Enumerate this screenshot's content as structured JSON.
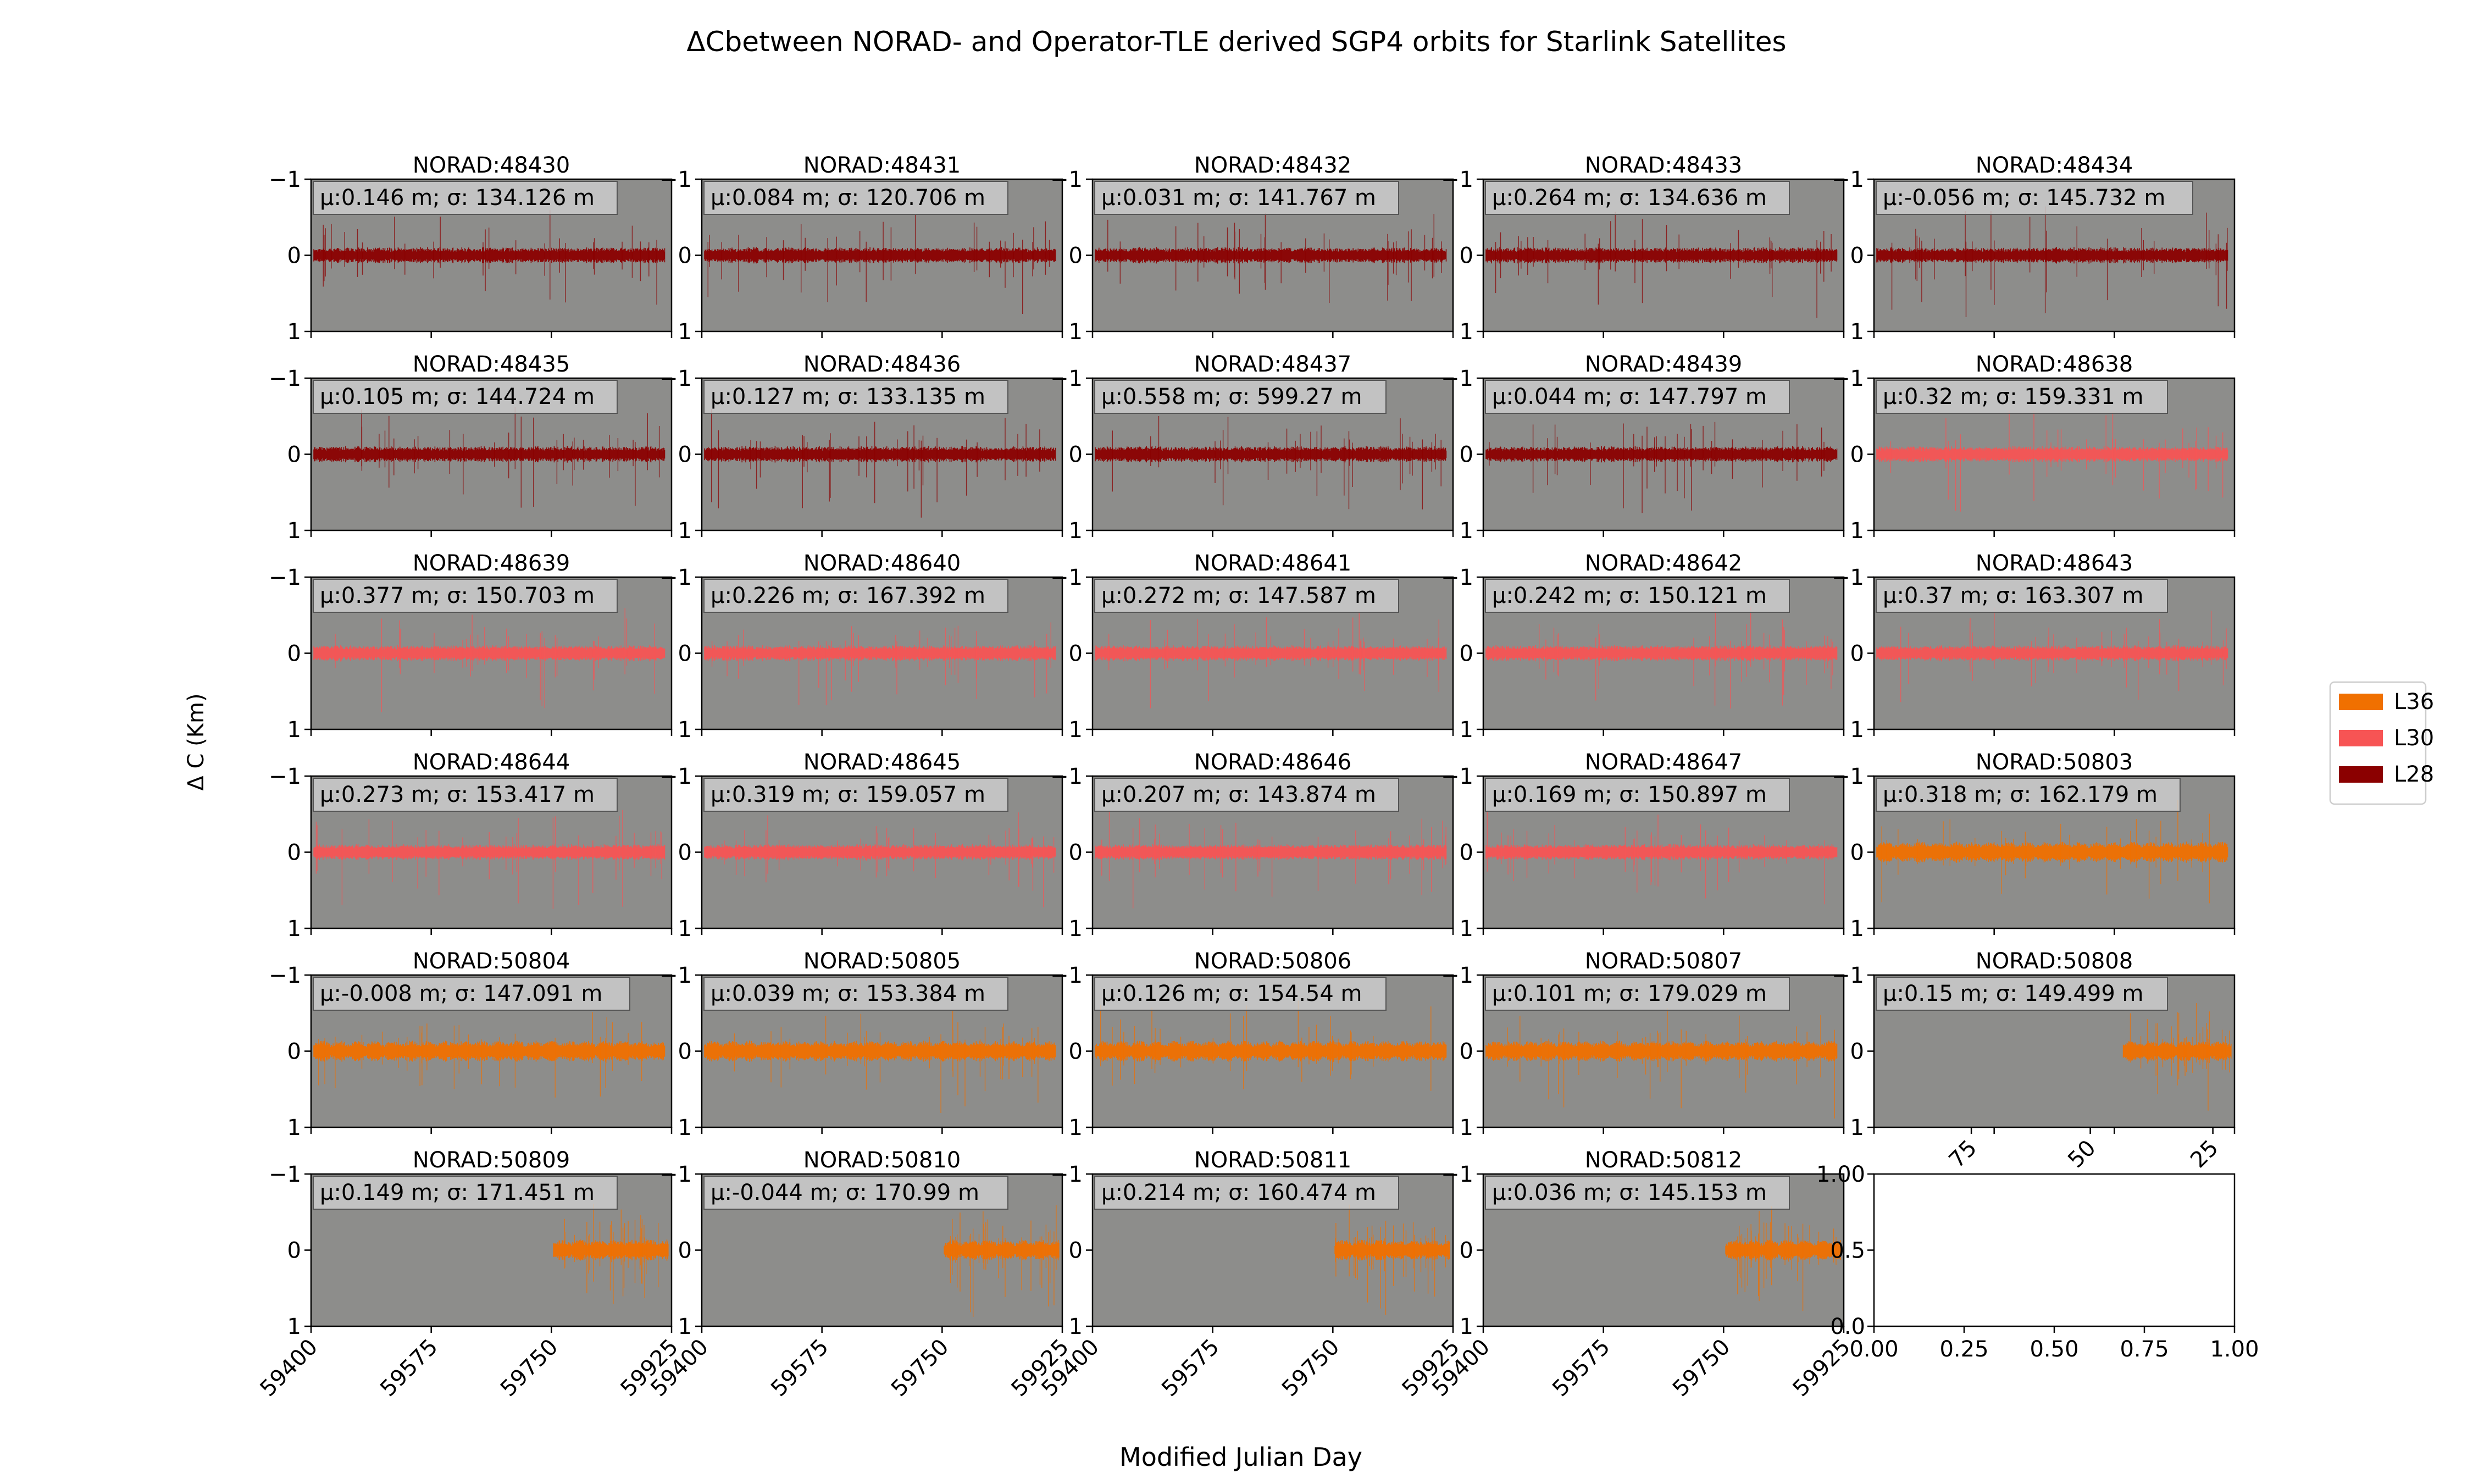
{
  "figure": {
    "title": "ΔCbetween NORAD- and Operator-TLE derived SGP4 orbits for Starlink Satellites",
    "xlabel": "Modified Julian Day",
    "ylabel": "Δ C (Km)"
  },
  "colors": {
    "L36": "#f07000",
    "L30": "#f75454",
    "L28": "#8b0000",
    "plot_bg": "#8d8d8b",
    "stats_box": "#cfcfcf"
  },
  "legend": {
    "placement": "center-right",
    "entries": [
      {
        "label": "L36",
        "color_key": "L36"
      },
      {
        "label": "L30",
        "color_key": "L30"
      },
      {
        "label": "L28",
        "color_key": "L28"
      }
    ]
  },
  "chart_data": {
    "type": "line",
    "layout": "small multiples, 6 rows x 5 columns",
    "xlim": [
      59400,
      59925
    ],
    "ylim": [
      -1,
      1
    ],
    "xticks": [
      "59400",
      "59575",
      "59750",
      "59925"
    ],
    "yticks": [
      "−1",
      "0",
      "1"
    ],
    "grid": false,
    "panels": [
      {
        "title": "NORAD:48430",
        "stats": "μ:0.146 m; σ: 134.126 m",
        "group": "L28",
        "mean_m": 0.146,
        "std_m": 134.126,
        "x_range": [
          59404,
          59915
        ]
      },
      {
        "title": "NORAD:48431",
        "stats": "μ:0.084 m; σ: 120.706 m",
        "group": "L28",
        "mean_m": 0.084,
        "std_m": 120.706,
        "x_range": [
          59404,
          59915
        ]
      },
      {
        "title": "NORAD:48432",
        "stats": "μ:0.031 m; σ: 141.767 m",
        "group": "L28",
        "mean_m": 0.031,
        "std_m": 141.767,
        "x_range": [
          59404,
          59915
        ]
      },
      {
        "title": "NORAD:48433",
        "stats": "μ:0.264 m; σ: 134.636 m",
        "group": "L28",
        "mean_m": 0.264,
        "std_m": 134.636,
        "x_range": [
          59404,
          59915
        ]
      },
      {
        "title": "NORAD:48434",
        "stats": "μ:-0.056 m; σ: 145.732 m",
        "group": "L28",
        "mean_m": -0.056,
        "std_m": 145.732,
        "x_range": [
          59404,
          59915
        ]
      },
      {
        "title": "NORAD:48435",
        "stats": "μ:0.105 m; σ: 144.724 m",
        "group": "L28",
        "mean_m": 0.105,
        "std_m": 144.724,
        "x_range": [
          59404,
          59915
        ]
      },
      {
        "title": "NORAD:48436",
        "stats": "μ:0.127 m; σ: 133.135 m",
        "group": "L28",
        "mean_m": 0.127,
        "std_m": 133.135,
        "x_range": [
          59404,
          59915
        ]
      },
      {
        "title": "NORAD:48437",
        "stats": "μ:0.558 m; σ: 599.27 m",
        "group": "L28",
        "mean_m": 0.558,
        "std_m": 599.27,
        "x_range": [
          59404,
          59915
        ]
      },
      {
        "title": "NORAD:48439",
        "stats": "μ:0.044 m; σ: 147.797 m",
        "group": "L28",
        "mean_m": 0.044,
        "std_m": 147.797,
        "x_range": [
          59404,
          59915
        ]
      },
      {
        "title": "NORAD:48638",
        "stats": "μ:0.32 m; σ: 159.331 m",
        "group": "L30",
        "mean_m": 0.32,
        "std_m": 159.331,
        "x_range": [
          59404,
          59915
        ]
      },
      {
        "title": "NORAD:48639",
        "stats": "μ:0.377 m; σ: 150.703 m",
        "group": "L30",
        "mean_m": 0.377,
        "std_m": 150.703,
        "x_range": [
          59404,
          59915
        ]
      },
      {
        "title": "NORAD:48640",
        "stats": "μ:0.226 m; σ: 167.392 m",
        "group": "L30",
        "mean_m": 0.226,
        "std_m": 167.392,
        "x_range": [
          59404,
          59915
        ]
      },
      {
        "title": "NORAD:48641",
        "stats": "μ:0.272 m; σ: 147.587 m",
        "group": "L30",
        "mean_m": 0.272,
        "std_m": 147.587,
        "x_range": [
          59404,
          59915
        ]
      },
      {
        "title": "NORAD:48642",
        "stats": "μ:0.242 m; σ: 150.121 m",
        "group": "L30",
        "mean_m": 0.242,
        "std_m": 150.121,
        "x_range": [
          59404,
          59915
        ]
      },
      {
        "title": "NORAD:48643",
        "stats": "μ:0.37 m; σ: 163.307 m",
        "group": "L30",
        "mean_m": 0.37,
        "std_m": 163.307,
        "x_range": [
          59404,
          59915
        ]
      },
      {
        "title": "NORAD:48644",
        "stats": "μ:0.273 m; σ: 153.417 m",
        "group": "L30",
        "mean_m": 0.273,
        "std_m": 153.417,
        "x_range": [
          59404,
          59915
        ]
      },
      {
        "title": "NORAD:48645",
        "stats": "μ:0.319 m; σ: 159.057 m",
        "group": "L30",
        "mean_m": 0.319,
        "std_m": 159.057,
        "x_range": [
          59404,
          59915
        ]
      },
      {
        "title": "NORAD:48646",
        "stats": "μ:0.207 m; σ: 143.874 m",
        "group": "L30",
        "mean_m": 0.207,
        "std_m": 143.874,
        "x_range": [
          59404,
          59915
        ]
      },
      {
        "title": "NORAD:48647",
        "stats": "μ:0.169 m; σ: 150.897 m",
        "group": "L30",
        "mean_m": 0.169,
        "std_m": 150.897,
        "x_range": [
          59404,
          59915
        ]
      },
      {
        "title": "NORAD:50803",
        "stats": "μ:0.318 m; σ: 162.179 m",
        "group": "L36",
        "mean_m": 0.318,
        "std_m": 162.179,
        "x_range": [
          59404,
          59915
        ]
      },
      {
        "title": "NORAD:50804",
        "stats": "μ:-0.008 m; σ: 147.091 m",
        "group": "L36",
        "mean_m": -0.008,
        "std_m": 147.091,
        "x_range": [
          59404,
          59915
        ]
      },
      {
        "title": "NORAD:50805",
        "stats": "μ:0.039 m; σ: 153.384 m",
        "group": "L36",
        "mean_m": 0.039,
        "std_m": 153.384,
        "x_range": [
          59404,
          59915
        ]
      },
      {
        "title": "NORAD:50806",
        "stats": "μ:0.126 m; σ: 154.54 m",
        "group": "L36",
        "mean_m": 0.126,
        "std_m": 154.54,
        "x_range": [
          59404,
          59915
        ]
      },
      {
        "title": "NORAD:50807",
        "stats": "μ:0.101 m; σ: 179.029 m",
        "group": "L36",
        "mean_m": 0.101,
        "std_m": 179.029,
        "x_range": [
          59404,
          59915
        ]
      },
      {
        "title": "NORAD:50808",
        "stats": "μ:0.15 m; σ: 149.499 m",
        "group": "L36",
        "mean_m": 0.15,
        "std_m": 149.499,
        "x_range": [
          59763,
          59920
        ]
      },
      {
        "title": "NORAD:50809",
        "stats": "μ:0.149 m; σ: 171.451 m",
        "group": "L36",
        "mean_m": 0.149,
        "std_m": 171.451,
        "x_range": [
          59753,
          59920
        ]
      },
      {
        "title": "NORAD:50810",
        "stats": "μ:-0.044 m; σ: 170.99 m",
        "group": "L36",
        "mean_m": -0.044,
        "std_m": 170.99,
        "x_range": [
          59753,
          59920
        ]
      },
      {
        "title": "NORAD:50811",
        "stats": "μ:0.214 m; σ: 160.474 m",
        "group": "L36",
        "mean_m": 0.214,
        "std_m": 160.474,
        "x_range": [
          59753,
          59920
        ]
      },
      {
        "title": "NORAD:50812",
        "stats": "μ:0.036 m; σ: 145.153 m",
        "group": "L36",
        "mean_m": 0.036,
        "std_m": 145.153,
        "x_range": [
          59753,
          59920
        ]
      }
    ],
    "empty_panel": {
      "xlim": [
        0,
        1
      ],
      "ylim": [
        0,
        1
      ],
      "xticks": [
        "0.00",
        "0.25",
        "0.50",
        "0.75",
        "1.00"
      ],
      "yticks": [
        "0.0",
        "0.5",
        "1.00"
      ],
      "overlapping_top_ticks": [
        "75",
        "50",
        "25"
      ]
    }
  }
}
